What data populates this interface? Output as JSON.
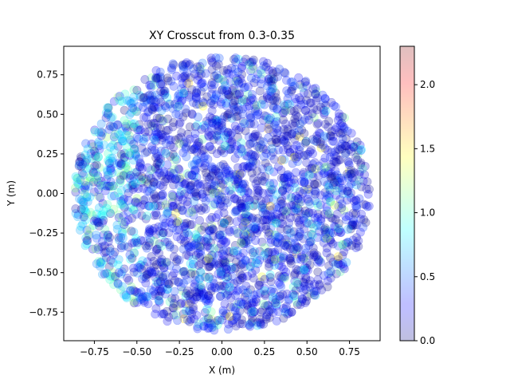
{
  "chart_data": {
    "type": "scatter",
    "title": "XY Crosscut from 0.3-0.35",
    "xlabel": "X (m)",
    "ylabel": "Y (m)",
    "xlim": [
      -0.93,
      0.93
    ],
    "ylim": [
      -0.93,
      0.93
    ],
    "x_ticks": [
      -0.75,
      -0.5,
      -0.25,
      0.0,
      0.25,
      0.5,
      0.75
    ],
    "x_tick_labels": [
      "−0.75",
      "−0.50",
      "−0.25",
      "0.00",
      "0.25",
      "0.50",
      "0.75"
    ],
    "y_ticks": [
      -0.75,
      -0.5,
      -0.25,
      0.0,
      0.25,
      0.5,
      0.75
    ],
    "y_tick_labels": [
      "−0.75",
      "−0.50",
      "−0.25",
      "0.00",
      "0.25",
      "0.50",
      "0.75"
    ],
    "point_region": {
      "shape": "disk",
      "center": [
        0.0,
        0.0
      ],
      "radius": 0.87
    },
    "marker_alpha": 0.25,
    "colormap": "jet",
    "colorbar": {
      "range": [
        0.0,
        2.3
      ],
      "ticks": [
        0.0,
        0.5,
        1.0,
        1.5,
        2.0
      ],
      "tick_labels": [
        "0.0",
        "0.5",
        "1.0",
        "1.5",
        "2.0"
      ]
    },
    "value_distribution": "mostly 0.0-0.5 (blue); higher values 0.6-1.2 (cyan/green) concentrated toward the left edge (x < -0.5) and scattered elsewhere; occasional points up to ~1.5"
  }
}
